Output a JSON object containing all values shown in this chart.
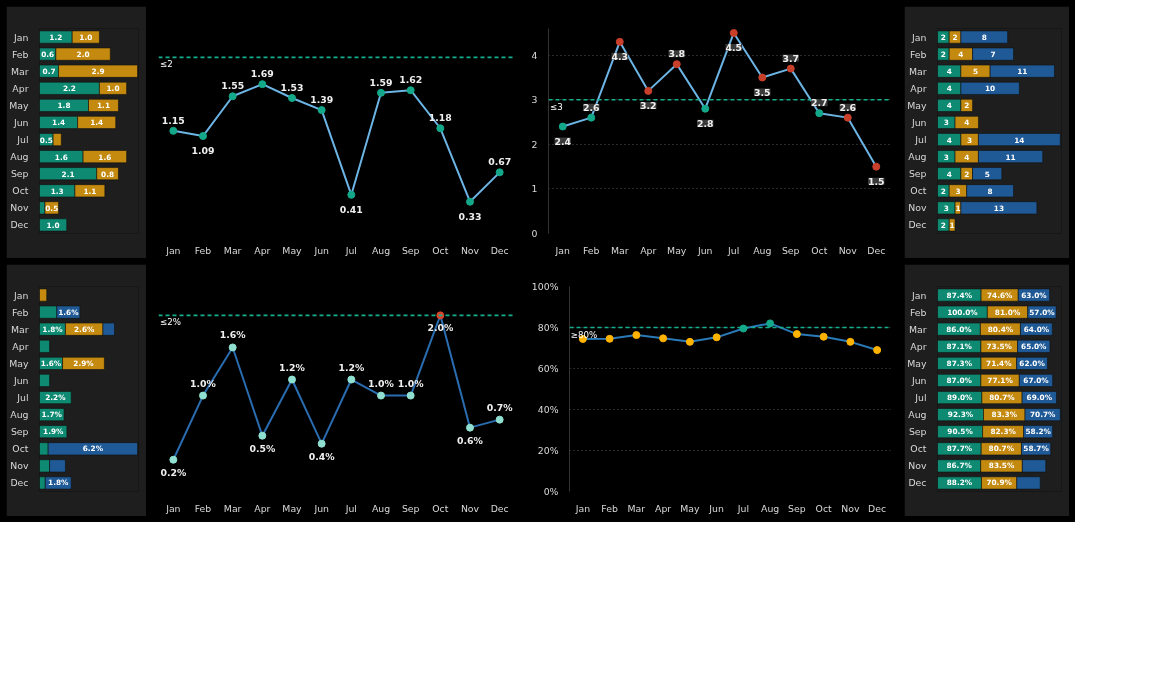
{
  "chart_data": [
    {
      "type": "bar",
      "orientation": "horizontal",
      "stacked": true,
      "tick_labels": "y",
      "categories": [
        "Jan",
        "Feb",
        "Mar",
        "Apr",
        "May",
        "Jun",
        "Jul",
        "Aug",
        "Sep",
        "Oct",
        "Nov",
        "Dec"
      ],
      "series": [
        {
          "color": "#0e8a72",
          "values": [
            1.2,
            0.6,
            0.7,
            2.2,
            1.8,
            1.4,
            0.5,
            1.6,
            2.1,
            1.3,
            0.2,
            1.0
          ],
          "value_labels": [
            "1.2",
            "0.6",
            "0.7",
            "2.2",
            "1.8",
            "1.4",
            "0.5",
            "1.6",
            "2.1",
            "1.3",
            null,
            "1.0"
          ]
        },
        {
          "color": "#c48a10",
          "values": [
            1.0,
            2.0,
            2.9,
            1.0,
            1.1,
            1.4,
            0.3,
            1.6,
            0.8,
            1.1,
            0.5,
            null
          ],
          "value_labels": [
            "1.0",
            "2.0",
            "2.9",
            "1.0",
            "1.1",
            "1.4",
            null,
            "1.6",
            "0.8",
            "1.1",
            "0.5",
            null
          ]
        }
      ]
    },
    {
      "type": "line",
      "tick_labels": "x",
      "marker": "circle",
      "data_labels": true,
      "categories": [
        "Jan",
        "Feb",
        "Mar",
        "Apr",
        "May",
        "Jun",
        "Jul",
        "Aug",
        "Sep",
        "Oct",
        "Nov",
        "Dec"
      ],
      "series": [
        {
          "color": "#6cb4e4",
          "colors": [
            "#14a88a",
            "#14a88a",
            "#14a88a",
            "#14a88a",
            "#14a88a",
            "#14a88a",
            "#14a88a",
            "#14a88a",
            "#14a88a",
            "#14a88a",
            "#14a88a",
            "#14a88a"
          ],
          "values": [
            1.15,
            1.09,
            1.55,
            1.69,
            1.53,
            1.39,
            0.41,
            1.59,
            1.62,
            1.18,
            0.33,
            0.67
          ]
        }
      ],
      "ref_lines": [
        {
          "axis": "y",
          "value": 2,
          "label": "≤2",
          "color": "#14b08e",
          "line_style": "dashed"
        }
      ]
    },
    {
      "type": "line",
      "marker": "circle",
      "data_labels": true,
      "grid": "y",
      "ylim": [
        0,
        4.6
      ],
      "yticks": [
        0,
        1,
        2,
        3,
        4
      ],
      "categories": [
        "Jan",
        "Feb",
        "Mar",
        "Apr",
        "May",
        "Jun",
        "Jul",
        "Aug",
        "Sep",
        "Oct",
        "Nov",
        "Dec"
      ],
      "series": [
        {
          "color": "#6cb4e4",
          "colors": [
            "#14a88a",
            "#14a88a",
            "#c8402a",
            "#c8402a",
            "#c8402a",
            "#14a88a",
            "#c8402a",
            "#c8402a",
            "#c8402a",
            "#14a88a",
            "#c8402a",
            "#c8402a"
          ],
          "values": [
            2.4,
            2.6,
            4.3,
            3.2,
            3.8,
            2.8,
            4.5,
            3.5,
            3.7,
            2.7,
            2.6,
            1.5
          ]
        }
      ],
      "ref_lines": [
        {
          "axis": "y",
          "value": 3,
          "label": "≤3",
          "color": "#14b08e",
          "line_style": "dashed"
        }
      ]
    },
    {
      "type": "bar",
      "orientation": "horizontal",
      "stacked": true,
      "tick_labels": "y",
      "data_labels": true,
      "categories": [
        "Jan",
        "Feb",
        "Mar",
        "Apr",
        "May",
        "Jun",
        "Jul",
        "Aug",
        "Sep",
        "Oct",
        "Nov",
        "Dec"
      ],
      "series": [
        {
          "color": "#0e8a72",
          "values": [
            2,
            2,
            4,
            4,
            4,
            3,
            4,
            3,
            4,
            2,
            3,
            2
          ]
        },
        {
          "color": "#c48a10",
          "values": [
            2,
            4,
            5,
            null,
            2,
            4,
            3,
            4,
            2,
            3,
            1,
            1
          ]
        },
        {
          "color": "#1f5a96",
          "values": [
            8,
            7,
            11,
            10,
            null,
            null,
            14,
            11,
            5,
            8,
            13,
            null
          ]
        }
      ]
    },
    {
      "type": "bar",
      "orientation": "horizontal",
      "stacked": true,
      "tick_labels": "y",
      "categories": [
        "Jan",
        "Feb",
        "Mar",
        "Apr",
        "May",
        "Jun",
        "Jul",
        "Aug",
        "Sep",
        "Oct",
        "Nov",
        "Dec"
      ],
      "series": [
        {
          "color": "#0e8a72",
          "values": [
            null,
            1.2,
            1.8,
            0.7,
            1.6,
            0.7,
            2.2,
            1.7,
            1.9,
            0.6,
            0.7,
            0.4
          ],
          "value_labels": [
            null,
            null,
            "1.8%",
            null,
            "1.6%",
            null,
            "2.2%",
            "1.7%",
            "1.9%",
            null,
            null,
            null
          ]
        },
        {
          "color": "#c48a10",
          "values": [
            0.5,
            null,
            2.6,
            null,
            2.9,
            null,
            null,
            null,
            null,
            null,
            null,
            null
          ],
          "value_labels": [
            null,
            null,
            "2.6%",
            null,
            "2.9%",
            null,
            null,
            null,
            null,
            null,
            null,
            null
          ]
        },
        {
          "color": "#1f5a96",
          "values": [
            null,
            1.6,
            0.8,
            null,
            null,
            null,
            null,
            null,
            null,
            6.2,
            1.1,
            1.8
          ],
          "value_labels": [
            null,
            "1.6%",
            null,
            null,
            null,
            null,
            null,
            null,
            null,
            "6.2%",
            null,
            "1.8%"
          ]
        }
      ]
    },
    {
      "type": "line",
      "tick_labels": "x",
      "marker": "circle",
      "categories": [
        "Jan",
        "Feb",
        "Mar",
        "Apr",
        "May",
        "Jun",
        "Jul",
        "Aug",
        "Sep",
        "Oct",
        "Nov",
        "Dec"
      ],
      "series": [
        {
          "color": "#2a6cb0",
          "colors": [
            "#8fe0d0",
            "#8fe0d0",
            "#8fe0d0",
            "#8fe0d0",
            "#8fe0d0",
            "#8fe0d0",
            "#8fe0d0",
            "#8fe0d0",
            "#8fe0d0",
            "#d9442a",
            "#8fe0d0",
            "#8fe0d0"
          ],
          "values": [
            0.2,
            1.0,
            1.6,
            0.5,
            1.2,
            0.4,
            1.2,
            1.0,
            1.0,
            2.0,
            0.6,
            0.7
          ],
          "value_labels": [
            "0.2%",
            "1.0%",
            "1.6%",
            "0.5%",
            "1.2%",
            "0.4%",
            "1.2%",
            "1.0%",
            "1.0%",
            "2.0%",
            "0.6%",
            "0.7%"
          ]
        }
      ],
      "ref_lines": [
        {
          "axis": "y",
          "value": 2,
          "label": "≤2%",
          "color": "#14b08e",
          "line_style": "dashed"
        }
      ]
    },
    {
      "type": "line",
      "marker": "circle",
      "grid": "y",
      "ylim": [
        0,
        100
      ],
      "yticks": [
        {
          "value": 0,
          "label": "0%"
        },
        {
          "value": 20,
          "label": "20%"
        },
        {
          "value": 40,
          "label": "40%"
        },
        {
          "value": 60,
          "label": "60%"
        },
        {
          "value": 80,
          "label": "80%"
        },
        {
          "value": 100,
          "label": "100%"
        }
      ],
      "categories": [
        "Jan",
        "Feb",
        "Mar",
        "Apr",
        "May",
        "Jun",
        "Jul",
        "Aug",
        "Sep",
        "Oct",
        "Nov",
        "Dec"
      ],
      "series": [
        {
          "color": "#2a7ab8",
          "colors": [
            "#ffb300",
            "#ffb300",
            "#ffb300",
            "#ffb300",
            "#ffb300",
            "#ffb300",
            "#14a88a",
            "#14a88a",
            "#ffb300",
            "#ffb300",
            "#ffb300",
            "#ffb300"
          ],
          "values": [
            74.4,
            74.5,
            76.3,
            74.7,
            73.0,
            75.2,
            79.5,
            82.0,
            76.8,
            75.5,
            73.0,
            69.0
          ]
        }
      ],
      "ref_lines": [
        {
          "axis": "y",
          "value": 80,
          "label": "≥80%",
          "color": "#14b08e",
          "line_style": "dashed"
        }
      ]
    },
    {
      "type": "bar",
      "orientation": "horizontal",
      "stacked": true,
      "tick_labels": "y",
      "categories": [
        "Jan",
        "Feb",
        "Mar",
        "Apr",
        "May",
        "Jun",
        "Jul",
        "Aug",
        "Sep",
        "Oct",
        "Nov",
        "Dec"
      ],
      "series": [
        {
          "color": "#0e8a72",
          "values": [
            87.4,
            100.0,
            86.0,
            87.1,
            87.3,
            87.0,
            89.0,
            92.3,
            90.5,
            87.7,
            86.7,
            88.2
          ],
          "value_labels": [
            "87.4%",
            "100.0%",
            "86.0%",
            "87.1%",
            "87.3%",
            "87.0%",
            "89.0%",
            "92.3%",
            "90.5%",
            "87.7%",
            "86.7%",
            "88.2%"
          ]
        },
        {
          "color": "#c48a10",
          "values": [
            74.6,
            81.0,
            80.4,
            73.5,
            71.4,
            77.1,
            80.7,
            83.3,
            82.3,
            80.7,
            83.5,
            70.9
          ],
          "value_labels": [
            "74.6%",
            "81.0%",
            "80.4%",
            "73.5%",
            "71.4%",
            "77.1%",
            "80.7%",
            "83.3%",
            "82.3%",
            "80.7%",
            "83.5%",
            "70.9%"
          ]
        },
        {
          "color": "#1f5a96",
          "values": [
            63.0,
            57.0,
            64.0,
            65.0,
            62.0,
            67.0,
            69.0,
            70.7,
            58.2,
            58.7,
            47,
            47
          ],
          "value_labels": [
            "63.0%",
            "57.0%",
            "64.0%",
            "65.0%",
            "62.0%",
            "67.0%",
            "69.0%",
            "70.7%",
            "58.2%",
            "58.7%",
            null,
            null
          ]
        }
      ]
    }
  ]
}
